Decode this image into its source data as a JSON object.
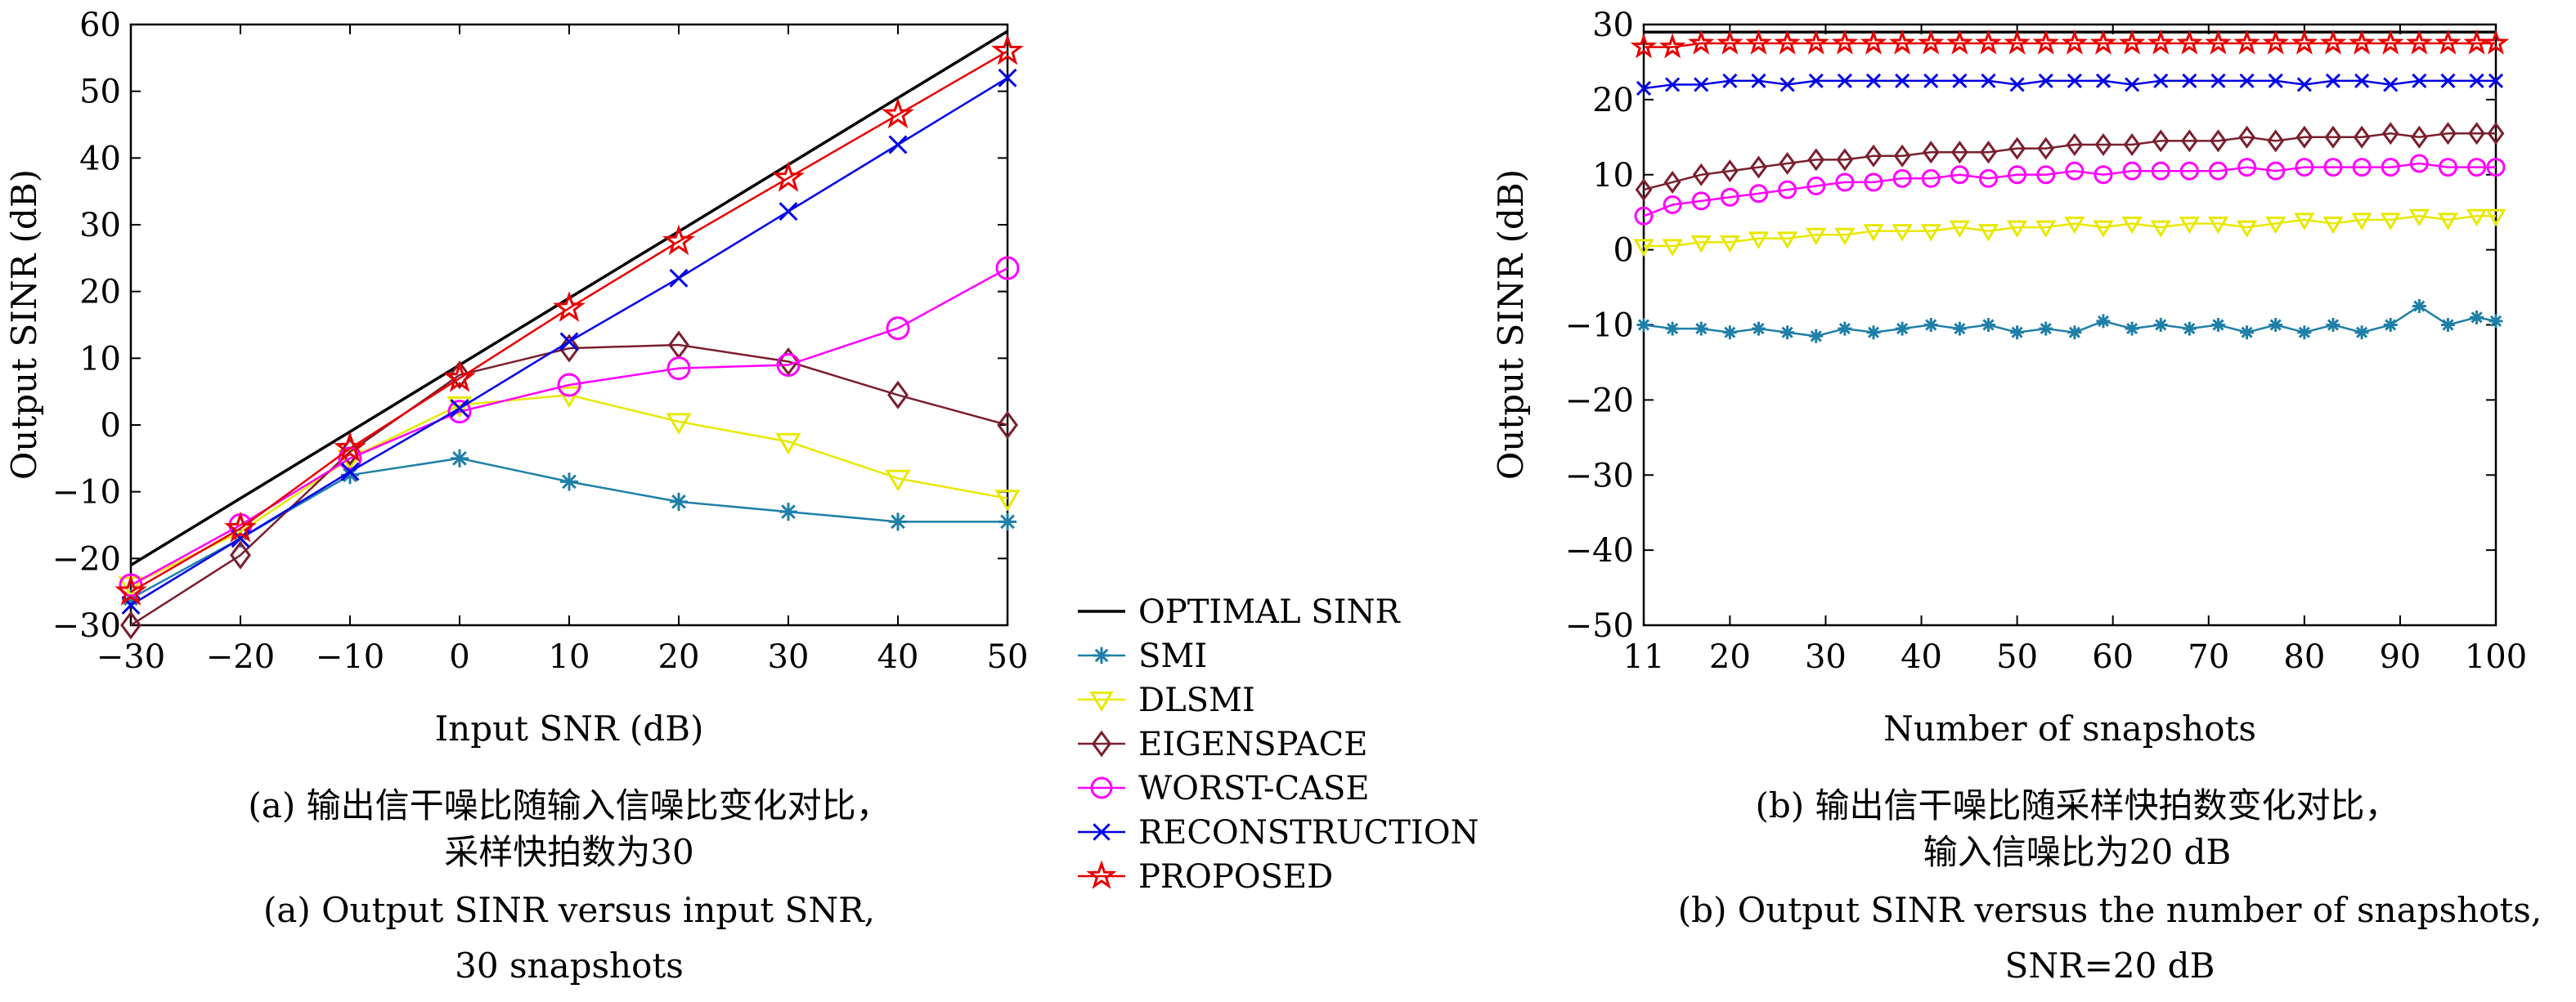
{
  "series_styles": [
    {
      "key": "optimal",
      "label": "OPTIMAL SINR",
      "color": "#000000",
      "marker": "none"
    },
    {
      "key": "smi",
      "label": "SMI",
      "color": "#1f7fa8",
      "marker": "asterisk"
    },
    {
      "key": "dlsmi",
      "label": "DLSMI",
      "color": "#e8e800",
      "marker": "triangle-down"
    },
    {
      "key": "eigen",
      "label": "EIGENSPACE",
      "color": "#7a1f2e",
      "marker": "diamond"
    },
    {
      "key": "worst",
      "label": "WORST-CASE",
      "color": "#ff00ff",
      "marker": "circle"
    },
    {
      "key": "recon",
      "label": "RECONSTRUCTION",
      "color": "#0000e6",
      "marker": "x"
    },
    {
      "key": "proposed",
      "label": "PROPOSED",
      "color": "#e60000",
      "marker": "star"
    }
  ],
  "captions": {
    "a_cn_line1": "(a) 输出信干噪比随输入信噪比变化对比，",
    "a_cn_line2": "采样快拍数为30",
    "a_en_line1": "(a) Output SINR versus input SNR,",
    "a_en_line2": "30 snapshots",
    "b_cn_line1": "(b) 输出信干噪比随采样快拍数变化对比，",
    "b_cn_line2": "输入信噪比为20 dB",
    "b_en_line1": "(b) Output SINR versus the number of snapshots,",
    "b_en_line2": "SNR=20 dB"
  },
  "chart_data": [
    {
      "type": "line",
      "xlabel": "Input SNR (dB)",
      "ylabel": "Output SINR (dB)",
      "xlim": [
        -30,
        50
      ],
      "ylim": [
        -30,
        60
      ],
      "xticks": [
        -30,
        -20,
        -10,
        0,
        10,
        20,
        30,
        40,
        50
      ],
      "yticks": [
        -30,
        -20,
        -10,
        0,
        10,
        20,
        30,
        40,
        50,
        60
      ],
      "grid": false,
      "x": [
        -30,
        -20,
        -10,
        0,
        10,
        20,
        30,
        40,
        50
      ],
      "series": [
        {
          "key": "optimal",
          "name": "OPTIMAL SINR",
          "values": [
            -21,
            -11,
            -1,
            9,
            19,
            29,
            39,
            49,
            59
          ]
        },
        {
          "key": "smi",
          "name": "SMI",
          "values": [
            -26,
            -17,
            -7.5,
            -5,
            -8.5,
            -11.5,
            -13,
            -14.5,
            -14.5
          ]
        },
        {
          "key": "dlsmi",
          "name": "DLSMI",
          "values": [
            -24,
            -16,
            -5,
            3,
            4.5,
            0.5,
            -2.5,
            -8,
            -11
          ]
        },
        {
          "key": "eigen",
          "name": "EIGENSPACE",
          "values": [
            -30,
            -19.5,
            -4,
            7.5,
            11.5,
            12,
            9.5,
            4.5,
            0
          ]
        },
        {
          "key": "worst",
          "name": "WORST-CASE",
          "values": [
            -24,
            -15,
            -5,
            2,
            6,
            8.5,
            9,
            14.5,
            23.5
          ]
        },
        {
          "key": "recon",
          "name": "RECONSTRUCTION",
          "values": [
            -27,
            -17,
            -7,
            2.5,
            12.5,
            22,
            32,
            42,
            52
          ]
        },
        {
          "key": "proposed",
          "name": "PROPOSED",
          "values": [
            -25,
            -15.5,
            -3.5,
            7,
            17.5,
            27.5,
            37,
            46.5,
            56
          ]
        }
      ]
    },
    {
      "type": "line",
      "xlabel": "Number of snapshots",
      "ylabel": "Output SINR (dB)",
      "xlim": [
        11,
        100
      ],
      "ylim": [
        -50,
        30
      ],
      "xticks": [
        11,
        20,
        30,
        40,
        50,
        60,
        70,
        80,
        90,
        100
      ],
      "yticks": [
        -50,
        -40,
        -30,
        -20,
        -10,
        0,
        10,
        20,
        30
      ],
      "grid": false,
      "x": [
        11,
        14,
        17,
        20,
        23,
        26,
        29,
        32,
        35,
        38,
        41,
        44,
        47,
        50,
        53,
        56,
        59,
        62,
        65,
        68,
        71,
        74,
        77,
        80,
        83,
        86,
        89,
        92,
        95,
        98,
        100
      ],
      "series": [
        {
          "key": "optimal",
          "name": "OPTIMAL SINR",
          "values": [
            29,
            29,
            29,
            29,
            29,
            29,
            29,
            29,
            29,
            29,
            29,
            29,
            29,
            29,
            29,
            29,
            29,
            29,
            29,
            29,
            29,
            29,
            29,
            29,
            29,
            29,
            29,
            29,
            29,
            29,
            29
          ]
        },
        {
          "key": "smi",
          "name": "SMI",
          "values": [
            -10,
            -10.5,
            -10.5,
            -11,
            -10.5,
            -11,
            -11.5,
            -10.5,
            -11,
            -10.5,
            -10,
            -10.5,
            -10,
            -11,
            -10.5,
            -11,
            -9.5,
            -10.5,
            -10,
            -10.5,
            -10,
            -11,
            -10,
            -11,
            -10,
            -11,
            -10,
            -7.5,
            -10,
            -9,
            -9.5
          ]
        },
        {
          "key": "dlsmi",
          "name": "DLSMI",
          "values": [
            0.5,
            0.5,
            1,
            1,
            1.5,
            1.5,
            2,
            2,
            2.5,
            2.5,
            2.5,
            3,
            2.5,
            3,
            3,
            3.5,
            3,
            3.5,
            3,
            3.5,
            3.5,
            3,
            3.5,
            4,
            3.5,
            4,
            4,
            4.5,
            4,
            4.5,
            4.5
          ]
        },
        {
          "key": "eigen",
          "name": "EIGENSPACE",
          "values": [
            8,
            9,
            10,
            10.5,
            11,
            11.5,
            12,
            12,
            12.5,
            12.5,
            13,
            13,
            13,
            13.5,
            13.5,
            14,
            14,
            14,
            14.5,
            14.5,
            14.5,
            15,
            14.5,
            15,
            15,
            15,
            15.5,
            15,
            15.5,
            15.5,
            15.5
          ]
        },
        {
          "key": "worst",
          "name": "WORST-CASE",
          "values": [
            4.5,
            6,
            6.5,
            7,
            7.5,
            8,
            8.5,
            9,
            9,
            9.5,
            9.5,
            10,
            9.5,
            10,
            10,
            10.5,
            10,
            10.5,
            10.5,
            10.5,
            10.5,
            11,
            10.5,
            11,
            11,
            11,
            11,
            11.5,
            11,
            11,
            11
          ]
        },
        {
          "key": "recon",
          "name": "RECONSTRUCTION",
          "values": [
            21.5,
            22,
            22,
            22.5,
            22.5,
            22,
            22.5,
            22.5,
            22.5,
            22.5,
            22.5,
            22.5,
            22.5,
            22,
            22.5,
            22.5,
            22.5,
            22,
            22.5,
            22.5,
            22.5,
            22.5,
            22.5,
            22,
            22.5,
            22.5,
            22,
            22.5,
            22.5,
            22.5,
            22.5
          ]
        },
        {
          "key": "proposed",
          "name": "PROPOSED",
          "values": [
            27,
            27,
            27.5,
            27.5,
            27.5,
            27.5,
            27.5,
            27.5,
            27.5,
            27.5,
            27.5,
            27.5,
            27.5,
            27.5,
            27.5,
            27.5,
            27.5,
            27.5,
            27.5,
            27.5,
            27.5,
            27.5,
            27.5,
            27.5,
            27.5,
            27.5,
            27.5,
            27.5,
            27.5,
            27.5,
            27.5
          ]
        }
      ]
    }
  ]
}
